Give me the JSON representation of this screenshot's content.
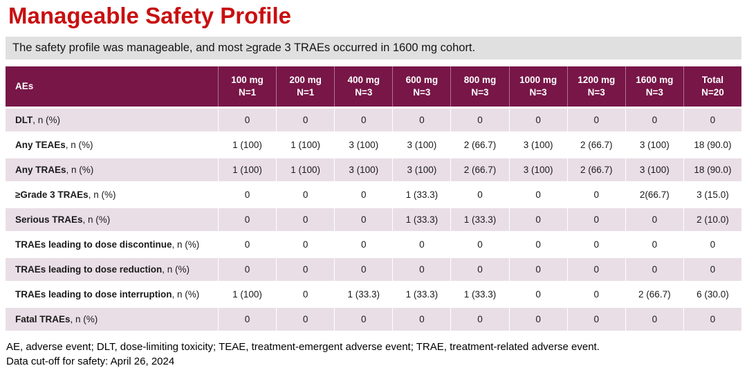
{
  "title": "Manageable Safety Profile",
  "banner": "The safety profile was manageable, and most ≥grade 3 TRAEs occurred in 1600 mg cohort.",
  "colors": {
    "title_red": "#c90f10",
    "banner_gray": "#e0e0e0",
    "table_header_maroon": "#771647",
    "row_alt_pink": "#e9dee6"
  },
  "table": {
    "label_header": "AEs",
    "columns": [
      {
        "dose": "100 mg",
        "n": "N=1"
      },
      {
        "dose": "200 mg",
        "n": "N=1"
      },
      {
        "dose": "400 mg",
        "n": "N=3"
      },
      {
        "dose": "600 mg",
        "n": "N=3"
      },
      {
        "dose": "800 mg",
        "n": "N=3"
      },
      {
        "dose": "1000 mg",
        "n": "N=3"
      },
      {
        "dose": "1200 mg",
        "n": "N=3"
      },
      {
        "dose": "1600 mg",
        "n": "N=3"
      },
      {
        "dose": "Total",
        "n": "N=20"
      }
    ],
    "rows": [
      {
        "label_bold": "DLT",
        "label_rest": ", n (%)",
        "values": [
          "0",
          "0",
          "0",
          "0",
          "0",
          "0",
          "0",
          "0",
          "0"
        ]
      },
      {
        "label_bold": "Any TEAEs",
        "label_rest": ", n (%)",
        "values": [
          "1 (100)",
          "1 (100)",
          "3 (100)",
          "3 (100)",
          "2 (66.7)",
          "3 (100)",
          "2 (66.7)",
          "3 (100)",
          "18 (90.0)"
        ]
      },
      {
        "label_bold": "Any TRAEs",
        "label_rest": ", n (%)",
        "values": [
          "1 (100)",
          "1 (100)",
          "3 (100)",
          "3 (100)",
          "2 (66.7)",
          "3 (100)",
          "2 (66.7)",
          "3 (100)",
          "18 (90.0)"
        ]
      },
      {
        "label_bold": "≥Grade 3 TRAEs",
        "label_rest": ", n (%)",
        "values": [
          "0",
          "0",
          "0",
          "1 (33.3)",
          "0",
          "0",
          "0",
          "2(66.7)",
          "3 (15.0)"
        ]
      },
      {
        "label_bold": "Serious TRAEs",
        "label_rest": ", n (%)",
        "values": [
          "0",
          "0",
          "0",
          "1 (33.3)",
          "1 (33.3)",
          "0",
          "0",
          "0",
          "2 (10.0)"
        ]
      },
      {
        "label_bold": "TRAEs leading to dose discontinue",
        "label_rest": ", n (%)",
        "values": [
          "0",
          "0",
          "0",
          "0",
          "0",
          "0",
          "0",
          "0",
          "0"
        ]
      },
      {
        "label_bold": "TRAEs leading to dose reduction",
        "label_rest": ", n (%)",
        "values": [
          "0",
          "0",
          "0",
          "0",
          "0",
          "0",
          "0",
          "0",
          "0"
        ]
      },
      {
        "label_bold": "TRAEs leading to dose interruption",
        "label_rest": ", n (%)",
        "values": [
          "1 (100)",
          "0",
          "1 (33.3)",
          "1 (33.3)",
          "1 (33.3)",
          "0",
          "0",
          "2 (66.7)",
          "6 (30.0)"
        ]
      },
      {
        "label_bold": "Fatal TRAEs",
        "label_rest": ", n (%)",
        "values": [
          "0",
          "0",
          "0",
          "0",
          "0",
          "0",
          "0",
          "0",
          "0"
        ]
      }
    ]
  },
  "footnotes": {
    "abbreviations": "AE, adverse event; DLT, dose-limiting toxicity; TEAE, treatment-emergent adverse event; TRAE, treatment-related adverse event.",
    "data_cutoff": "Data cut-off for safety: April 26, 2024"
  }
}
